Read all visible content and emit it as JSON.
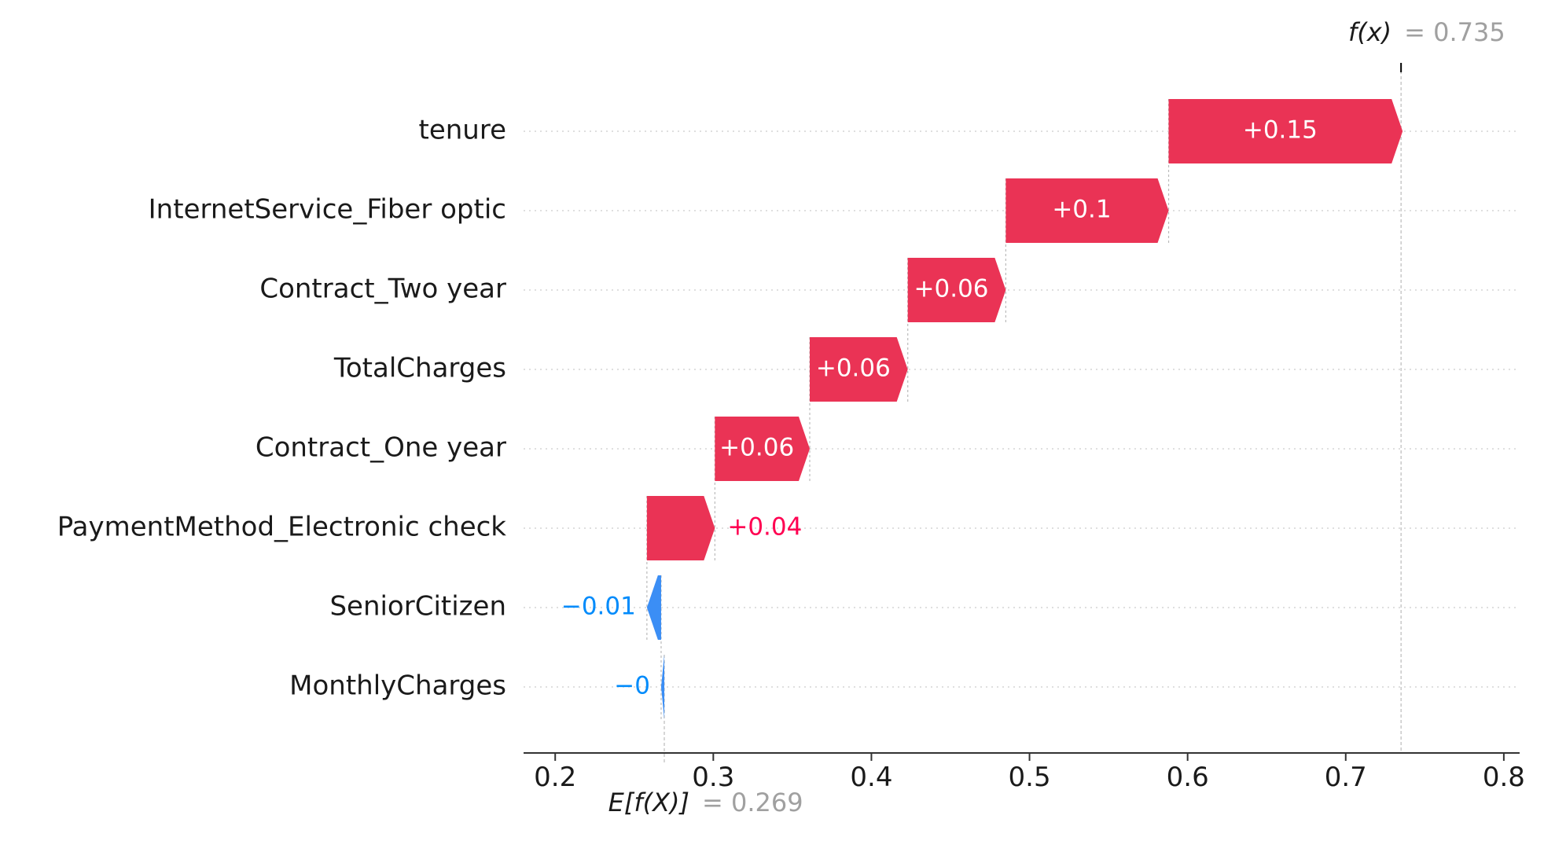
{
  "chart_data": {
    "type": "waterfall",
    "base_value": 0.269,
    "final_value": 0.735,
    "base_label": "E[f(X)]",
    "base_value_text": "= 0.269",
    "final_label": "f(x)",
    "final_value_text": "= 0.735",
    "xlim": [
      0.18,
      0.81
    ],
    "xticks": [
      0.2,
      0.3,
      0.4,
      0.5,
      0.6,
      0.7,
      0.8
    ],
    "xtick_labels": [
      "0.2",
      "0.3",
      "0.4",
      "0.5",
      "0.6",
      "0.7",
      "0.8"
    ],
    "features": [
      {
        "name": "tenure",
        "value": 0.148,
        "label": "+0.15"
      },
      {
        "name": "InternetService_Fiber optic",
        "value": 0.103,
        "label": "+0.1"
      },
      {
        "name": "Contract_Two year",
        "value": 0.062,
        "label": "+0.06"
      },
      {
        "name": "TotalCharges",
        "value": 0.062,
        "label": "+0.06"
      },
      {
        "name": "Contract_One year",
        "value": 0.06,
        "label": "+0.06"
      },
      {
        "name": "PaymentMethod_Electronic check",
        "value": 0.043,
        "label": "+0.04"
      },
      {
        "name": "SeniorCitizen",
        "value": -0.009,
        "label": "−0.01"
      },
      {
        "name": "MonthlyCharges",
        "value": -0.002,
        "label": "−0"
      }
    ],
    "colors": {
      "positive": "#ff0051",
      "negative": "#008bfb",
      "positive_bar": "#ea3355",
      "negative_bar": "#3b8ef5"
    },
    "grid": "dotted-horizontal"
  }
}
